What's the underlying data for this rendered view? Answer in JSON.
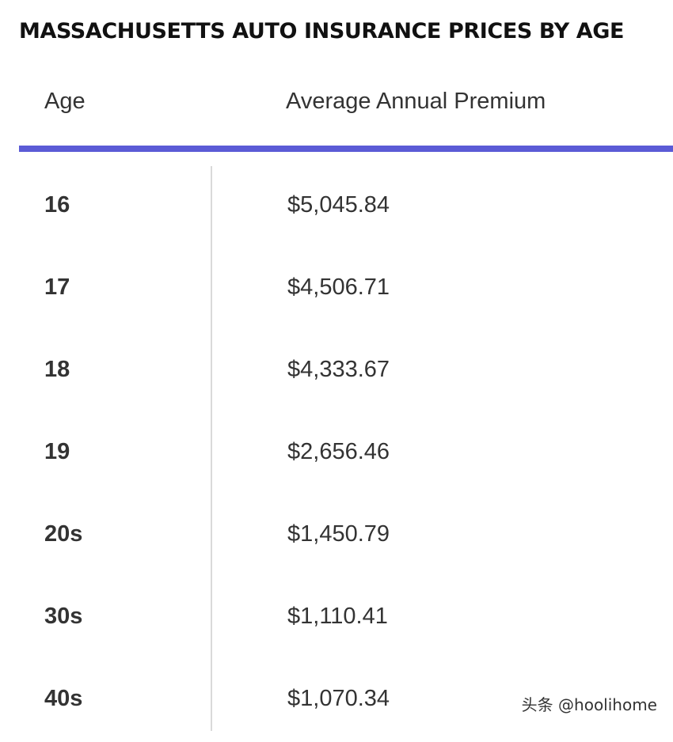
{
  "title": "MASSACHUSETTS AUTO INSURANCE PRICES BY AGE",
  "table": {
    "headers": {
      "age": "Age",
      "premium": "Average Annual Premium"
    },
    "rows": [
      {
        "age": "16",
        "premium": "$5,045.84"
      },
      {
        "age": "17",
        "premium": "$4,506.71"
      },
      {
        "age": "18",
        "premium": "$4,333.67"
      },
      {
        "age": "19",
        "premium": "$2,656.46"
      },
      {
        "age": "20s",
        "premium": "$1,450.79"
      },
      {
        "age": "30s",
        "premium": "$1,110.41"
      },
      {
        "age": "40s",
        "premium": "$1,070.34"
      }
    ]
  },
  "watermark": "头条 @hoolihome",
  "colors": {
    "accent_rule": "#5b5bd6",
    "text": "#333333",
    "title": "#111111",
    "divider": "#d9d9d9"
  }
}
